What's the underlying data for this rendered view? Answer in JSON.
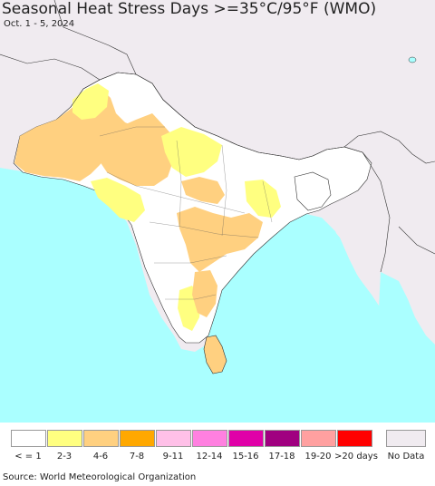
{
  "title": "Seasonal Heat Stress Days >=35°C/95°F (WMO)",
  "subtitle": "Oct. 1 - 5, 2024",
  "source": "Source: World Meteorological Organization",
  "colors": {
    "ocean": "#aaffff",
    "outside": "#f0ebf0",
    "india_base": "#ffffff",
    "border": "#333333"
  },
  "legend": {
    "items": [
      {
        "label": "< = 1",
        "color": "#ffffff"
      },
      {
        "label": "2-3",
        "color": "#ffff80"
      },
      {
        "label": "4-6",
        "color": "#ffd080"
      },
      {
        "label": "7-8",
        "color": "#ffa800"
      },
      {
        "label": "9-11",
        "color": "#ffc0e8"
      },
      {
        "label": "12-14",
        "color": "#ff80e0"
      },
      {
        "label": "15-16",
        "color": "#e000a8"
      },
      {
        "label": "17-18",
        "color": "#a00080"
      },
      {
        "label": "19-20",
        "color": "#ffa0a0"
      },
      {
        "label": ">20 days",
        "color": "#ff0000"
      }
    ],
    "nodata": {
      "label": "No Data",
      "color": "#f0ebf0"
    }
  }
}
